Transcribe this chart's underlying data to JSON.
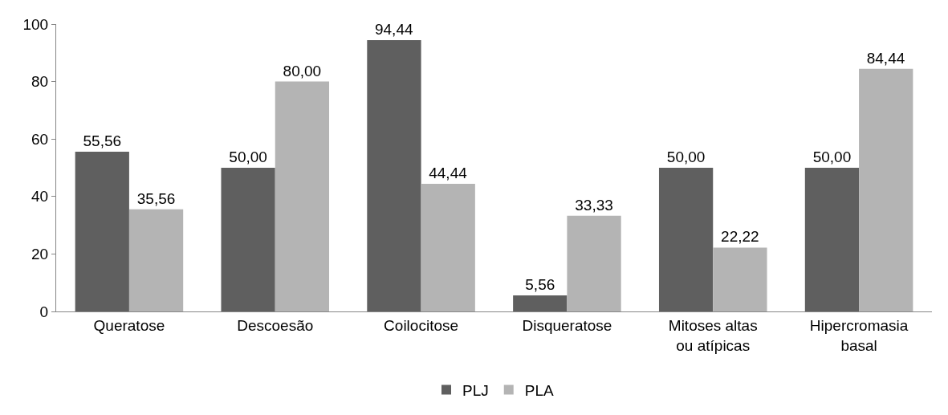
{
  "chart_data": {
    "type": "bar",
    "categories": [
      "Queratose",
      "Descoesão",
      "Coilocitose",
      "Disqueratose",
      "Mitoses altas\nou atípicas",
      "Hipercromasia\nbasal"
    ],
    "series": [
      {
        "name": "PLJ",
        "color": "#5f5f5f",
        "values": [
          55.56,
          50.0,
          94.44,
          5.56,
          50.0,
          50.0
        ],
        "value_labels": [
          "55,56",
          "50,00",
          "94,44",
          "5,56",
          "50,00",
          "50,00"
        ]
      },
      {
        "name": "PLA",
        "color": "#b4b4b4",
        "values": [
          35.56,
          80.0,
          44.44,
          33.33,
          22.22,
          84.44
        ],
        "value_labels": [
          "35,56",
          "80,00",
          "44,44",
          "33,33",
          "22,22",
          "84,44"
        ]
      }
    ],
    "ylim": [
      0,
      100
    ],
    "yticks": [
      0,
      20,
      40,
      60,
      80,
      100
    ],
    "legend": "bottom"
  }
}
